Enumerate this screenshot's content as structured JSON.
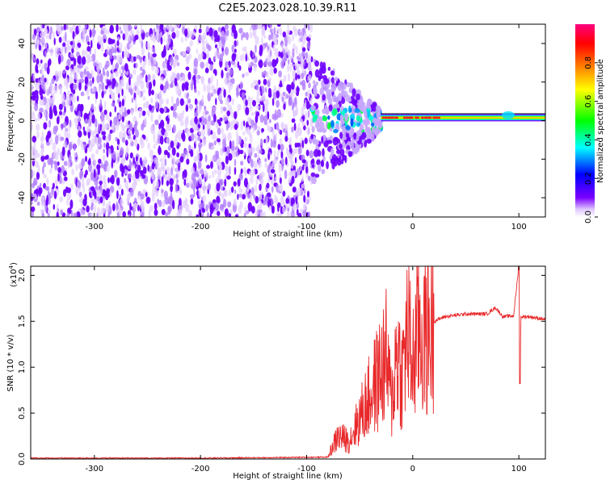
{
  "title": "C2E5.2023.028.10.39.R11",
  "colors": {
    "spectrum_cool": "#6a00ff",
    "snr_line": "#e8282a",
    "frame": "#000000"
  },
  "chart_data": [
    {
      "type": "heatmap",
      "name": "spectrogram",
      "xlabel": "Height of straight line (km)",
      "ylabel": "Frequency (Hz)",
      "xlim": [
        -360,
        125
      ],
      "ylim": [
        -50,
        50
      ],
      "xticks": [
        -300,
        -200,
        -100,
        0,
        100
      ],
      "xtick_labels": [
        "-300",
        "-200",
        "-100",
        "0",
        "100"
      ],
      "yticks": [
        -40,
        -20,
        0,
        20,
        40
      ],
      "ytick_labels": [
        "-40",
        "-20",
        "0",
        "20",
        "40"
      ],
      "colorbar": {
        "label": "Normalized spectral amplitude",
        "range": [
          0,
          1
        ],
        "ticks": [
          0.0,
          0.2,
          0.4,
          0.6,
          0.8
        ],
        "tick_labels": [
          "0.0",
          "0.2",
          "0.4",
          "0.6",
          "0.8"
        ],
        "colormap": [
          "#ffffff",
          "#7b00ff",
          "#0000ff",
          "#00ffff",
          "#00ff00",
          "#ffff00",
          "#ff8000",
          "#ff0000",
          "#ff0080"
        ]
      },
      "regions": [
        {
          "x": [
            -360,
            -95
          ],
          "description": "broadband noise",
          "amplitude": 0.15
        },
        {
          "x": [
            -95,
            -30
          ],
          "description": "transition",
          "amplitude": 0.45
        },
        {
          "x": [
            -30,
            125
          ],
          "frequency": 1.5,
          "description": "narrow carrier line",
          "amplitude": 0.7
        }
      ]
    },
    {
      "type": "line",
      "name": "snr",
      "xlabel": "Height of straight line (km)",
      "ylabel": "SNR (10 * v/v)",
      "y_multiplier_label": "(x10",
      "y_multiplier_exp": "4",
      "xlim": [
        -360,
        125
      ],
      "ylim": [
        0,
        2.1
      ],
      "xticks": [
        -300,
        -200,
        -100,
        0,
        100
      ],
      "xtick_labels": [
        "-300",
        "-200",
        "-100",
        "0",
        "100"
      ],
      "yticks": [
        0.0,
        0.5,
        1.0,
        1.5,
        2.0
      ],
      "ytick_labels": [
        "0.0",
        "0.5",
        "1.0",
        "1.5",
        "2.0"
      ],
      "series": [
        {
          "color": "#e8282a",
          "x": [
            -360,
            -200,
            -80,
            -75,
            -70,
            -60,
            -50,
            -40,
            -30,
            -25,
            -20,
            -15,
            -10,
            -5,
            0,
            5,
            10,
            20,
            30,
            50,
            70,
            78,
            85,
            95,
            100,
            101,
            102,
            110,
            125
          ],
          "y": [
            0.01,
            0.01,
            0.02,
            0.15,
            0.25,
            0.2,
            0.45,
            0.7,
            0.95,
            1.1,
            0.6,
            1.2,
            0.9,
            1.4,
            1.0,
            1.45,
            1.3,
            1.5,
            1.55,
            1.58,
            1.58,
            1.65,
            1.55,
            1.56,
            2.1,
            0.8,
            1.55,
            1.55,
            1.52
          ]
        }
      ]
    }
  ]
}
